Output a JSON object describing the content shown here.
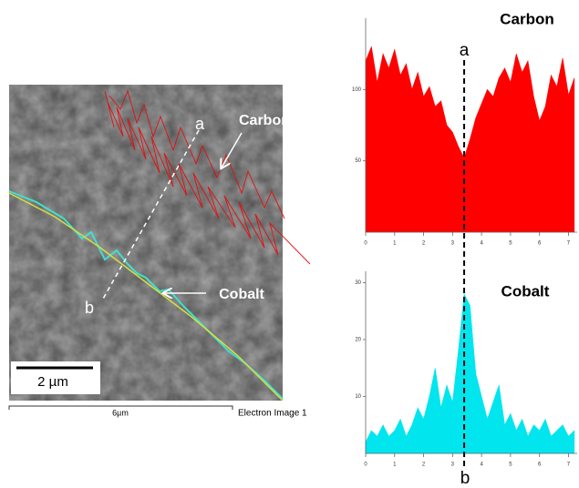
{
  "image": {
    "carbon_label": "Carbon",
    "cobalt_label": "Cobalt",
    "start": "a",
    "end": "b",
    "scale_bar": "2 µm",
    "field_width": "6µm",
    "caption": "Electron Image 1"
  },
  "scan_line": {
    "x": 3.4,
    "start": "a",
    "end": "b"
  },
  "chart_data": [
    {
      "type": "area",
      "title": "Carbon",
      "color": "#ff0000",
      "x": [
        0,
        0.2,
        0.4,
        0.6,
        0.8,
        1.0,
        1.2,
        1.4,
        1.6,
        1.8,
        2.0,
        2.2,
        2.4,
        2.6,
        2.8,
        3.0,
        3.2,
        3.4,
        3.6,
        3.8,
        4.0,
        4.2,
        4.4,
        4.6,
        4.8,
        5.0,
        5.2,
        5.4,
        5.6,
        5.8,
        6.0,
        6.2,
        6.4,
        6.6,
        6.8,
        7.0,
        7.2
      ],
      "values": [
        120,
        130,
        105,
        125,
        115,
        128,
        110,
        118,
        100,
        112,
        95,
        102,
        88,
        92,
        75,
        70,
        60,
        52,
        65,
        80,
        90,
        100,
        95,
        108,
        115,
        105,
        125,
        112,
        120,
        95,
        78,
        88,
        110,
        102,
        122,
        96,
        108
      ],
      "xlim": [
        0,
        7.3
      ],
      "ylim": [
        0,
        150
      ],
      "xticks": [
        0,
        1,
        2,
        3,
        4,
        5,
        6,
        7
      ],
      "yticks": [
        50,
        100
      ]
    },
    {
      "type": "area",
      "title": "Cobalt",
      "color": "#00e5ee",
      "x": [
        0,
        0.2,
        0.4,
        0.6,
        0.8,
        1.0,
        1.2,
        1.4,
        1.6,
        1.8,
        2.0,
        2.2,
        2.4,
        2.6,
        2.8,
        3.0,
        3.2,
        3.4,
        3.6,
        3.8,
        4.0,
        4.2,
        4.4,
        4.6,
        4.8,
        5.0,
        5.2,
        5.4,
        5.6,
        5.8,
        6.0,
        6.2,
        6.4,
        6.6,
        6.8,
        7.0,
        7.2
      ],
      "values": [
        2,
        4,
        3,
        5,
        3,
        4,
        6,
        3,
        5,
        8,
        6,
        10,
        15,
        8,
        12,
        9,
        18,
        28,
        26,
        14,
        10,
        6,
        9,
        12,
        5,
        7,
        4,
        6,
        3,
        5,
        4,
        6,
        3,
        4,
        5,
        3,
        4
      ],
      "xlim": [
        0,
        7.3
      ],
      "ylim": [
        0,
        32
      ],
      "xticks": [
        0,
        1,
        2,
        3,
        4,
        5,
        6,
        7
      ],
      "yticks": [
        10,
        20,
        30
      ]
    }
  ]
}
